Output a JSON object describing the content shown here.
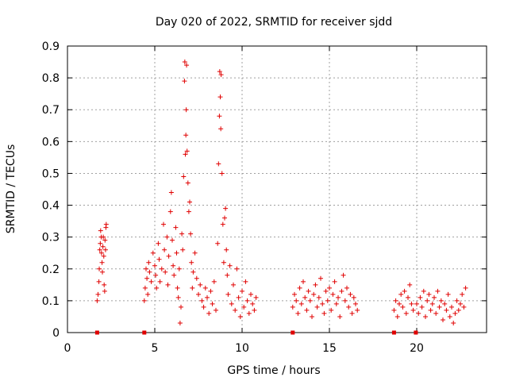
{
  "chart_data": {
    "type": "scatter",
    "title": "Day 020 of 2022, SRMTID for receiver sjdd",
    "xlabel": "GPS time / hours",
    "ylabel": "SRMTID / TECUs",
    "xlim": [
      0,
      24
    ],
    "ylim": [
      0,
      0.9
    ],
    "xticks": [
      0,
      5,
      10,
      15,
      20
    ],
    "yticks": [
      0,
      0.1,
      0.2,
      0.3,
      0.4,
      0.5,
      0.6,
      0.7,
      0.8,
      0.9
    ],
    "grid": true,
    "marker": "+",
    "series_color": "#e00000",
    "series": [
      {
        "name": "SRMTID",
        "points": [
          [
            1.7,
            0.1
          ],
          [
            1.75,
            0.12
          ],
          [
            1.8,
            0.16
          ],
          [
            1.82,
            0.2
          ],
          [
            1.85,
            0.26
          ],
          [
            1.88,
            0.28
          ],
          [
            1.9,
            0.32
          ],
          [
            1.93,
            0.3
          ],
          [
            1.95,
            0.25
          ],
          [
            1.98,
            0.22
          ],
          [
            2.0,
            0.19
          ],
          [
            2.03,
            0.27
          ],
          [
            2.05,
            0.3
          ],
          [
            2.08,
            0.24
          ],
          [
            2.1,
            0.15
          ],
          [
            2.13,
            0.13
          ],
          [
            2.15,
            0.29
          ],
          [
            2.18,
            0.26
          ],
          [
            2.2,
            0.33
          ],
          [
            2.22,
            0.34
          ],
          [
            4.4,
            0.1
          ],
          [
            4.45,
            0.14
          ],
          [
            4.5,
            0.2
          ],
          [
            4.55,
            0.17
          ],
          [
            4.6,
            0.12
          ],
          [
            4.65,
            0.22
          ],
          [
            4.7,
            0.19
          ],
          [
            4.8,
            0.16
          ],
          [
            4.9,
            0.25
          ],
          [
            5.0,
            0.21
          ],
          [
            5.05,
            0.18
          ],
          [
            5.1,
            0.14
          ],
          [
            5.2,
            0.28
          ],
          [
            5.25,
            0.23
          ],
          [
            5.3,
            0.16
          ],
          [
            5.4,
            0.2
          ],
          [
            5.5,
            0.34
          ],
          [
            5.55,
            0.26
          ],
          [
            5.6,
            0.19
          ],
          [
            5.7,
            0.3
          ],
          [
            5.75,
            0.15
          ],
          [
            5.8,
            0.24
          ],
          [
            5.9,
            0.38
          ],
          [
            5.95,
            0.44
          ],
          [
            6.0,
            0.29
          ],
          [
            6.05,
            0.21
          ],
          [
            6.1,
            0.18
          ],
          [
            6.2,
            0.33
          ],
          [
            6.25,
            0.25
          ],
          [
            6.3,
            0.14
          ],
          [
            6.35,
            0.11
          ],
          [
            6.4,
            0.2
          ],
          [
            6.45,
            0.03
          ],
          [
            6.5,
            0.08
          ],
          [
            6.55,
            0.31
          ],
          [
            6.6,
            0.26
          ],
          [
            6.65,
            0.49
          ],
          [
            6.7,
            0.79
          ],
          [
            6.72,
            0.85
          ],
          [
            6.75,
            0.56
          ],
          [
            6.78,
            0.62
          ],
          [
            6.8,
            0.7
          ],
          [
            6.82,
            0.84
          ],
          [
            6.85,
            0.57
          ],
          [
            6.9,
            0.47
          ],
          [
            6.95,
            0.38
          ],
          [
            7.0,
            0.41
          ],
          [
            7.05,
            0.31
          ],
          [
            7.1,
            0.22
          ],
          [
            7.15,
            0.14
          ],
          [
            7.2,
            0.19
          ],
          [
            7.3,
            0.25
          ],
          [
            7.4,
            0.17
          ],
          [
            7.5,
            0.12
          ],
          [
            7.6,
            0.15
          ],
          [
            7.7,
            0.1
          ],
          [
            7.8,
            0.08
          ],
          [
            7.9,
            0.14
          ],
          [
            8.0,
            0.11
          ],
          [
            8.1,
            0.06
          ],
          [
            8.2,
            0.13
          ],
          [
            8.3,
            0.09
          ],
          [
            8.4,
            0.16
          ],
          [
            8.5,
            0.07
          ],
          [
            8.6,
            0.28
          ],
          [
            8.65,
            0.53
          ],
          [
            8.7,
            0.68
          ],
          [
            8.72,
            0.82
          ],
          [
            8.75,
            0.74
          ],
          [
            8.78,
            0.64
          ],
          [
            8.8,
            0.81
          ],
          [
            8.85,
            0.5
          ],
          [
            8.9,
            0.34
          ],
          [
            8.95,
            0.22
          ],
          [
            9.0,
            0.36
          ],
          [
            9.05,
            0.39
          ],
          [
            9.1,
            0.26
          ],
          [
            9.15,
            0.18
          ],
          [
            9.2,
            0.12
          ],
          [
            9.3,
            0.21
          ],
          [
            9.4,
            0.09
          ],
          [
            9.5,
            0.15
          ],
          [
            9.6,
            0.07
          ],
          [
            9.7,
            0.2
          ],
          [
            9.8,
            0.11
          ],
          [
            9.9,
            0.05
          ],
          [
            10.0,
            0.13
          ],
          [
            10.1,
            0.08
          ],
          [
            10.2,
            0.16
          ],
          [
            10.3,
            0.1
          ],
          [
            10.4,
            0.06
          ],
          [
            10.5,
            0.12
          ],
          [
            10.6,
            0.09
          ],
          [
            10.7,
            0.07
          ],
          [
            10.8,
            0.11
          ],
          [
            12.9,
            0.08
          ],
          [
            13.0,
            0.12
          ],
          [
            13.1,
            0.1
          ],
          [
            13.2,
            0.06
          ],
          [
            13.3,
            0.14
          ],
          [
            13.4,
            0.09
          ],
          [
            13.5,
            0.16
          ],
          [
            13.6,
            0.11
          ],
          [
            13.7,
            0.07
          ],
          [
            13.8,
            0.13
          ],
          [
            13.9,
            0.1
          ],
          [
            14.0,
            0.05
          ],
          [
            14.1,
            0.12
          ],
          [
            14.2,
            0.15
          ],
          [
            14.3,
            0.08
          ],
          [
            14.4,
            0.11
          ],
          [
            14.5,
            0.17
          ],
          [
            14.6,
            0.09
          ],
          [
            14.7,
            0.06
          ],
          [
            14.8,
            0.13
          ],
          [
            14.9,
            0.1
          ],
          [
            15.0,
            0.14
          ],
          [
            15.1,
            0.07
          ],
          [
            15.2,
            0.12
          ],
          [
            15.3,
            0.16
          ],
          [
            15.4,
            0.09
          ],
          [
            15.5,
            0.11
          ],
          [
            15.6,
            0.05
          ],
          [
            15.7,
            0.13
          ],
          [
            15.8,
            0.18
          ],
          [
            15.9,
            0.1
          ],
          [
            16.0,
            0.14
          ],
          [
            16.1,
            0.08
          ],
          [
            16.2,
            0.12
          ],
          [
            16.3,
            0.06
          ],
          [
            16.4,
            0.11
          ],
          [
            16.5,
            0.09
          ],
          [
            16.6,
            0.07
          ],
          [
            18.7,
            0.07
          ],
          [
            18.8,
            0.1
          ],
          [
            18.9,
            0.05
          ],
          [
            19.0,
            0.09
          ],
          [
            19.1,
            0.12
          ],
          [
            19.2,
            0.08
          ],
          [
            19.3,
            0.13
          ],
          [
            19.4,
            0.06
          ],
          [
            19.5,
            0.11
          ],
          [
            19.6,
            0.15
          ],
          [
            19.7,
            0.09
          ],
          [
            19.8,
            0.07
          ],
          [
            20.0,
            0.09
          ],
          [
            20.1,
            0.06
          ],
          [
            20.2,
            0.11
          ],
          [
            20.3,
            0.08
          ],
          [
            20.4,
            0.13
          ],
          [
            20.5,
            0.05
          ],
          [
            20.6,
            0.1
          ],
          [
            20.7,
            0.12
          ],
          [
            20.8,
            0.07
          ],
          [
            20.9,
            0.09
          ],
          [
            21.0,
            0.11
          ],
          [
            21.1,
            0.06
          ],
          [
            21.2,
            0.13
          ],
          [
            21.3,
            0.08
          ],
          [
            21.4,
            0.1
          ],
          [
            21.5,
            0.04
          ],
          [
            21.6,
            0.09
          ],
          [
            21.7,
            0.07
          ],
          [
            21.8,
            0.12
          ],
          [
            21.9,
            0.05
          ],
          [
            22.0,
            0.08
          ],
          [
            22.1,
            0.03
          ],
          [
            22.2,
            0.06
          ],
          [
            22.3,
            0.1
          ],
          [
            22.4,
            0.07
          ],
          [
            22.5,
            0.09
          ],
          [
            22.6,
            0.12
          ],
          [
            22.7,
            0.08
          ],
          [
            22.8,
            0.14
          ]
        ]
      }
    ],
    "zero_markers": [
      1.7,
      4.4,
      12.9,
      18.7,
      19.95
    ]
  }
}
